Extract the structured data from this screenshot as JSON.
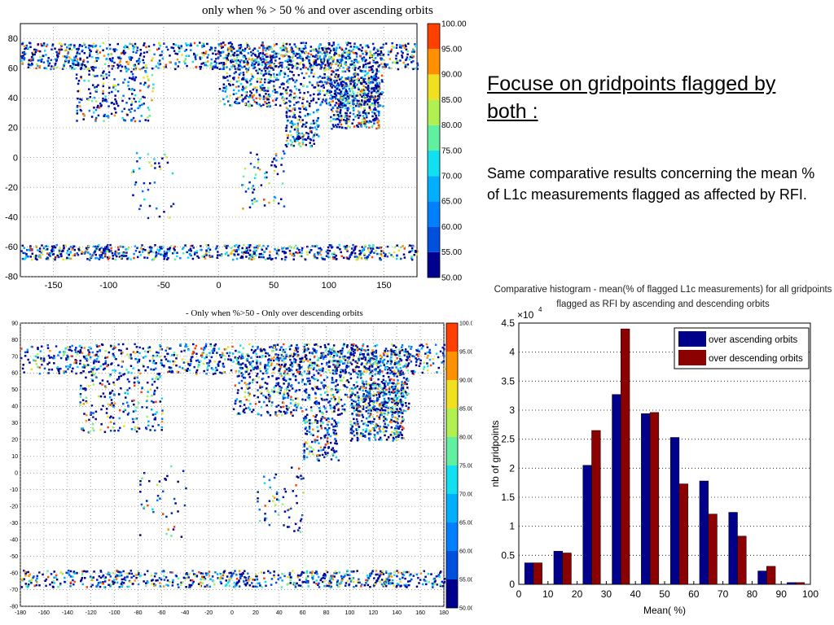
{
  "slide": {
    "heading": "Focuse on gridpoints flagged by both :",
    "body": "Same comparative results concerning the mean % of L1c measurements flagged as affected by RFI."
  },
  "map_top": {
    "title": "only when % > 50 % and over ascending orbits",
    "y_ticks": [
      "80",
      "60",
      "40",
      "20",
      "0",
      "-20",
      "-40",
      "-60",
      "-80"
    ],
    "x_ticks": [
      "-150",
      "-100",
      "-50",
      "0",
      "50",
      "100",
      "150"
    ],
    "colorbar": [
      "100.00",
      "95.00",
      "90.00",
      "85.00",
      "80.00",
      "75.00",
      "70.00",
      "65.00",
      "60.00",
      "55.00",
      "50.00"
    ]
  },
  "map_bottom": {
    "title": "- Only when %>50 - Only over descending orbits",
    "y_ticks": [
      "90",
      "80",
      "70",
      "60",
      "50",
      "40",
      "30",
      "20",
      "10",
      "0",
      "-10",
      "-20",
      "-30",
      "-40",
      "-50",
      "-60",
      "-70",
      "-80"
    ],
    "x_ticks": [
      "-180",
      "-160",
      "-140",
      "-120",
      "-100",
      "-80",
      "-60",
      "-40",
      "-20",
      "0",
      "20",
      "40",
      "60",
      "80",
      "100",
      "120",
      "140",
      "160",
      "180"
    ],
    "colorbar": [
      "100.00",
      "95.00",
      "90.00",
      "85.00",
      "80.00",
      "75.00",
      "70.00",
      "65.00",
      "60.00",
      "55.00",
      "50.00"
    ]
  },
  "colors": {
    "ascending": "#00008b",
    "descending": "#8b0000"
  },
  "chart_data": {
    "type": "bar",
    "title": "Comparative histogram - mean(% of flagged L1c measurements) for all gridpoints flagged as RFI by ascending and descending orbits",
    "title_line1": "Comparative histogram - mean(% of flagged L1c measurements) for all gridpoints",
    "title_line2": "flagged as RFI by ascending and descending orbits",
    "xlabel": "Mean( %)",
    "ylabel": "nb of  gridpoints",
    "y_multiplier": "×10",
    "y_exponent": "4",
    "xlim": [
      0,
      100
    ],
    "ylim": [
      0,
      4.5
    ],
    "x_ticks": [
      "0",
      "10",
      "20",
      "30",
      "40",
      "50",
      "60",
      "70",
      "80",
      "90",
      "100"
    ],
    "y_ticks": [
      "0",
      "0.5",
      "1",
      "1.5",
      "2",
      "2.5",
      "3",
      "3.5",
      "4",
      "4.5"
    ],
    "grid": true,
    "legend_position": "top-right",
    "categories": [
      5,
      15,
      25,
      35,
      45,
      55,
      65,
      75,
      85,
      95
    ],
    "series": [
      {
        "name": "over ascending orbits",
        "values": [
          0.37,
          0.57,
          2.05,
          3.27,
          2.94,
          2.53,
          1.78,
          1.24,
          0.23,
          0.03
        ]
      },
      {
        "name": "over descending orbits",
        "values": [
          0.37,
          0.54,
          2.65,
          4.4,
          2.96,
          1.73,
          1.21,
          0.83,
          0.31,
          0.03
        ]
      }
    ]
  }
}
